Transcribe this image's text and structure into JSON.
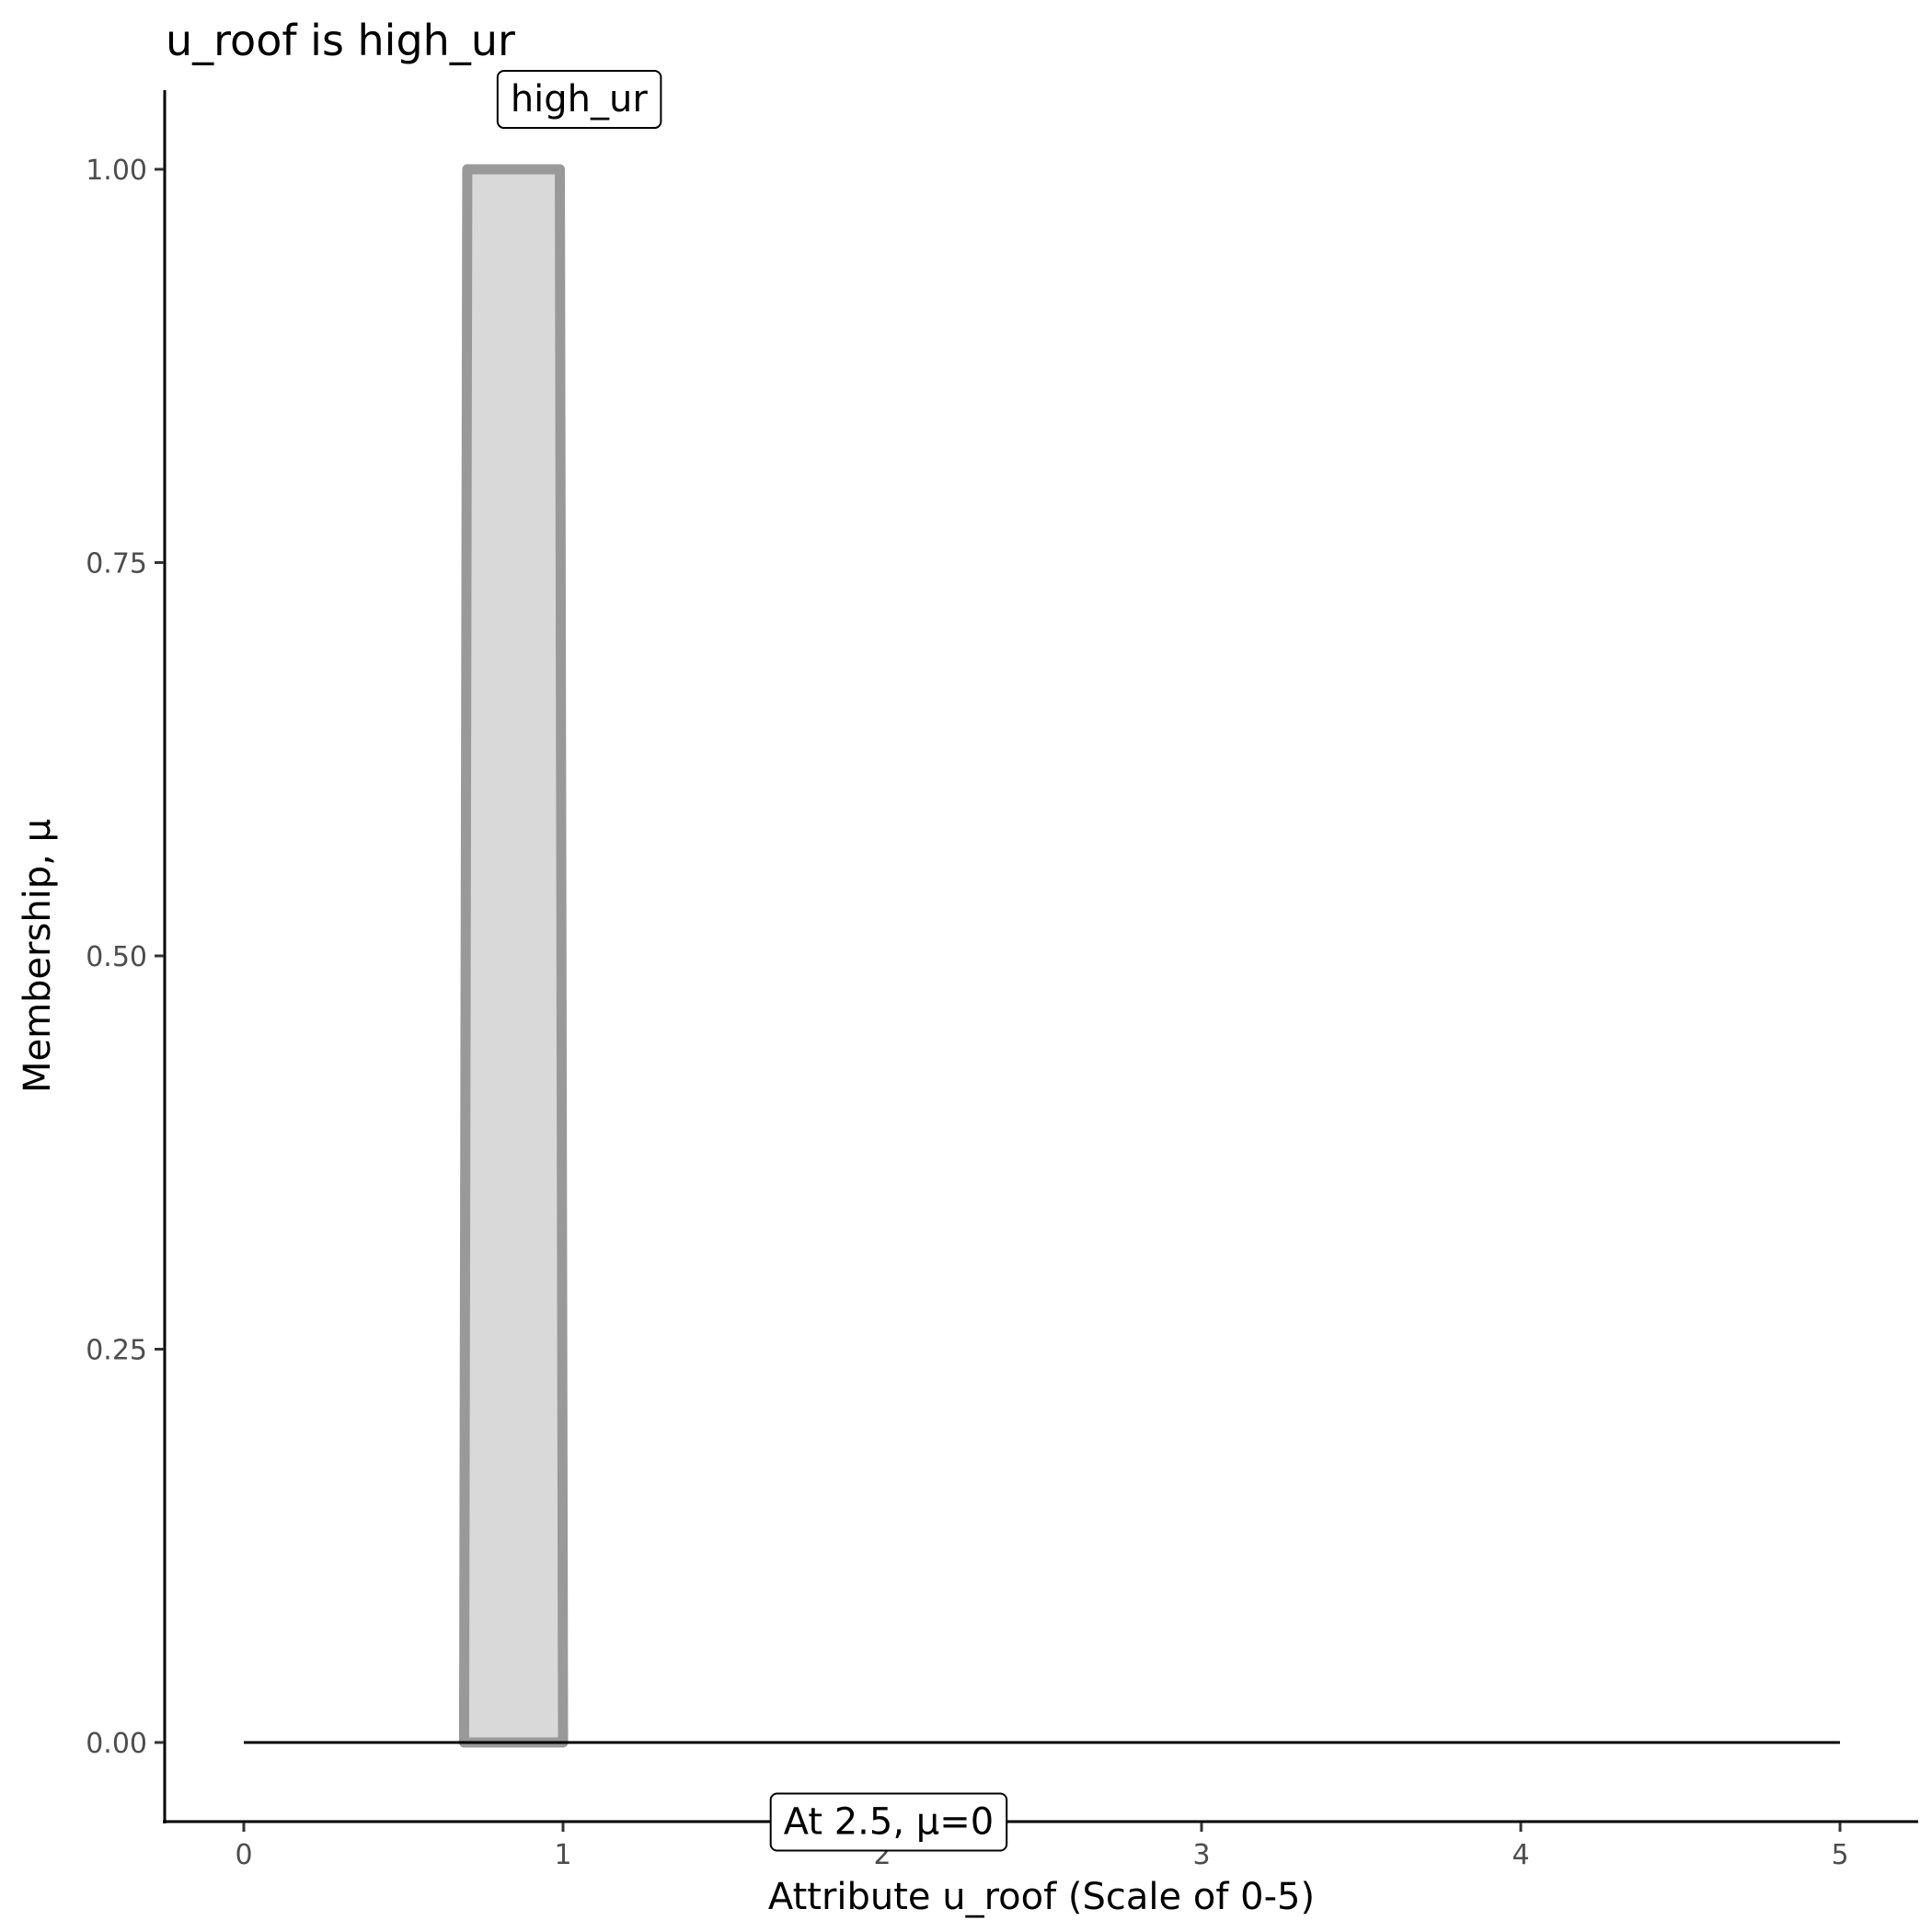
{
  "chart_data": {
    "type": "area",
    "title": "u_roof is high_ur",
    "xlabel": "Attribute u_roof (Scale of 0-5)",
    "ylabel": "Membership, μ",
    "xlim": [
      -0.25,
      5.25
    ],
    "ylim": [
      -0.05,
      1.05
    ],
    "xticks": [
      "0",
      "1",
      "2",
      "3",
      "4",
      "5"
    ],
    "yticks": [
      "0.00",
      "0.25",
      "0.50",
      "0.75",
      "1.00"
    ],
    "grid": false,
    "series": [
      {
        "name": "high_ur",
        "x": [
          0.69,
          0.7,
          0.99,
          1.0
        ],
        "y": [
          0,
          1,
          1,
          0
        ],
        "fill": "#d9d9d9",
        "stroke": "#999999"
      }
    ],
    "baseline": {
      "x": [
        0,
        5
      ],
      "y": [
        0,
        0
      ],
      "color": "#000000"
    },
    "annotations": [
      {
        "text": "high_ur",
        "x": 1.05,
        "y": 1.045
      },
      {
        "text": "At 2.5, μ=0",
        "x": 2.02,
        "y": -0.05
      }
    ]
  }
}
